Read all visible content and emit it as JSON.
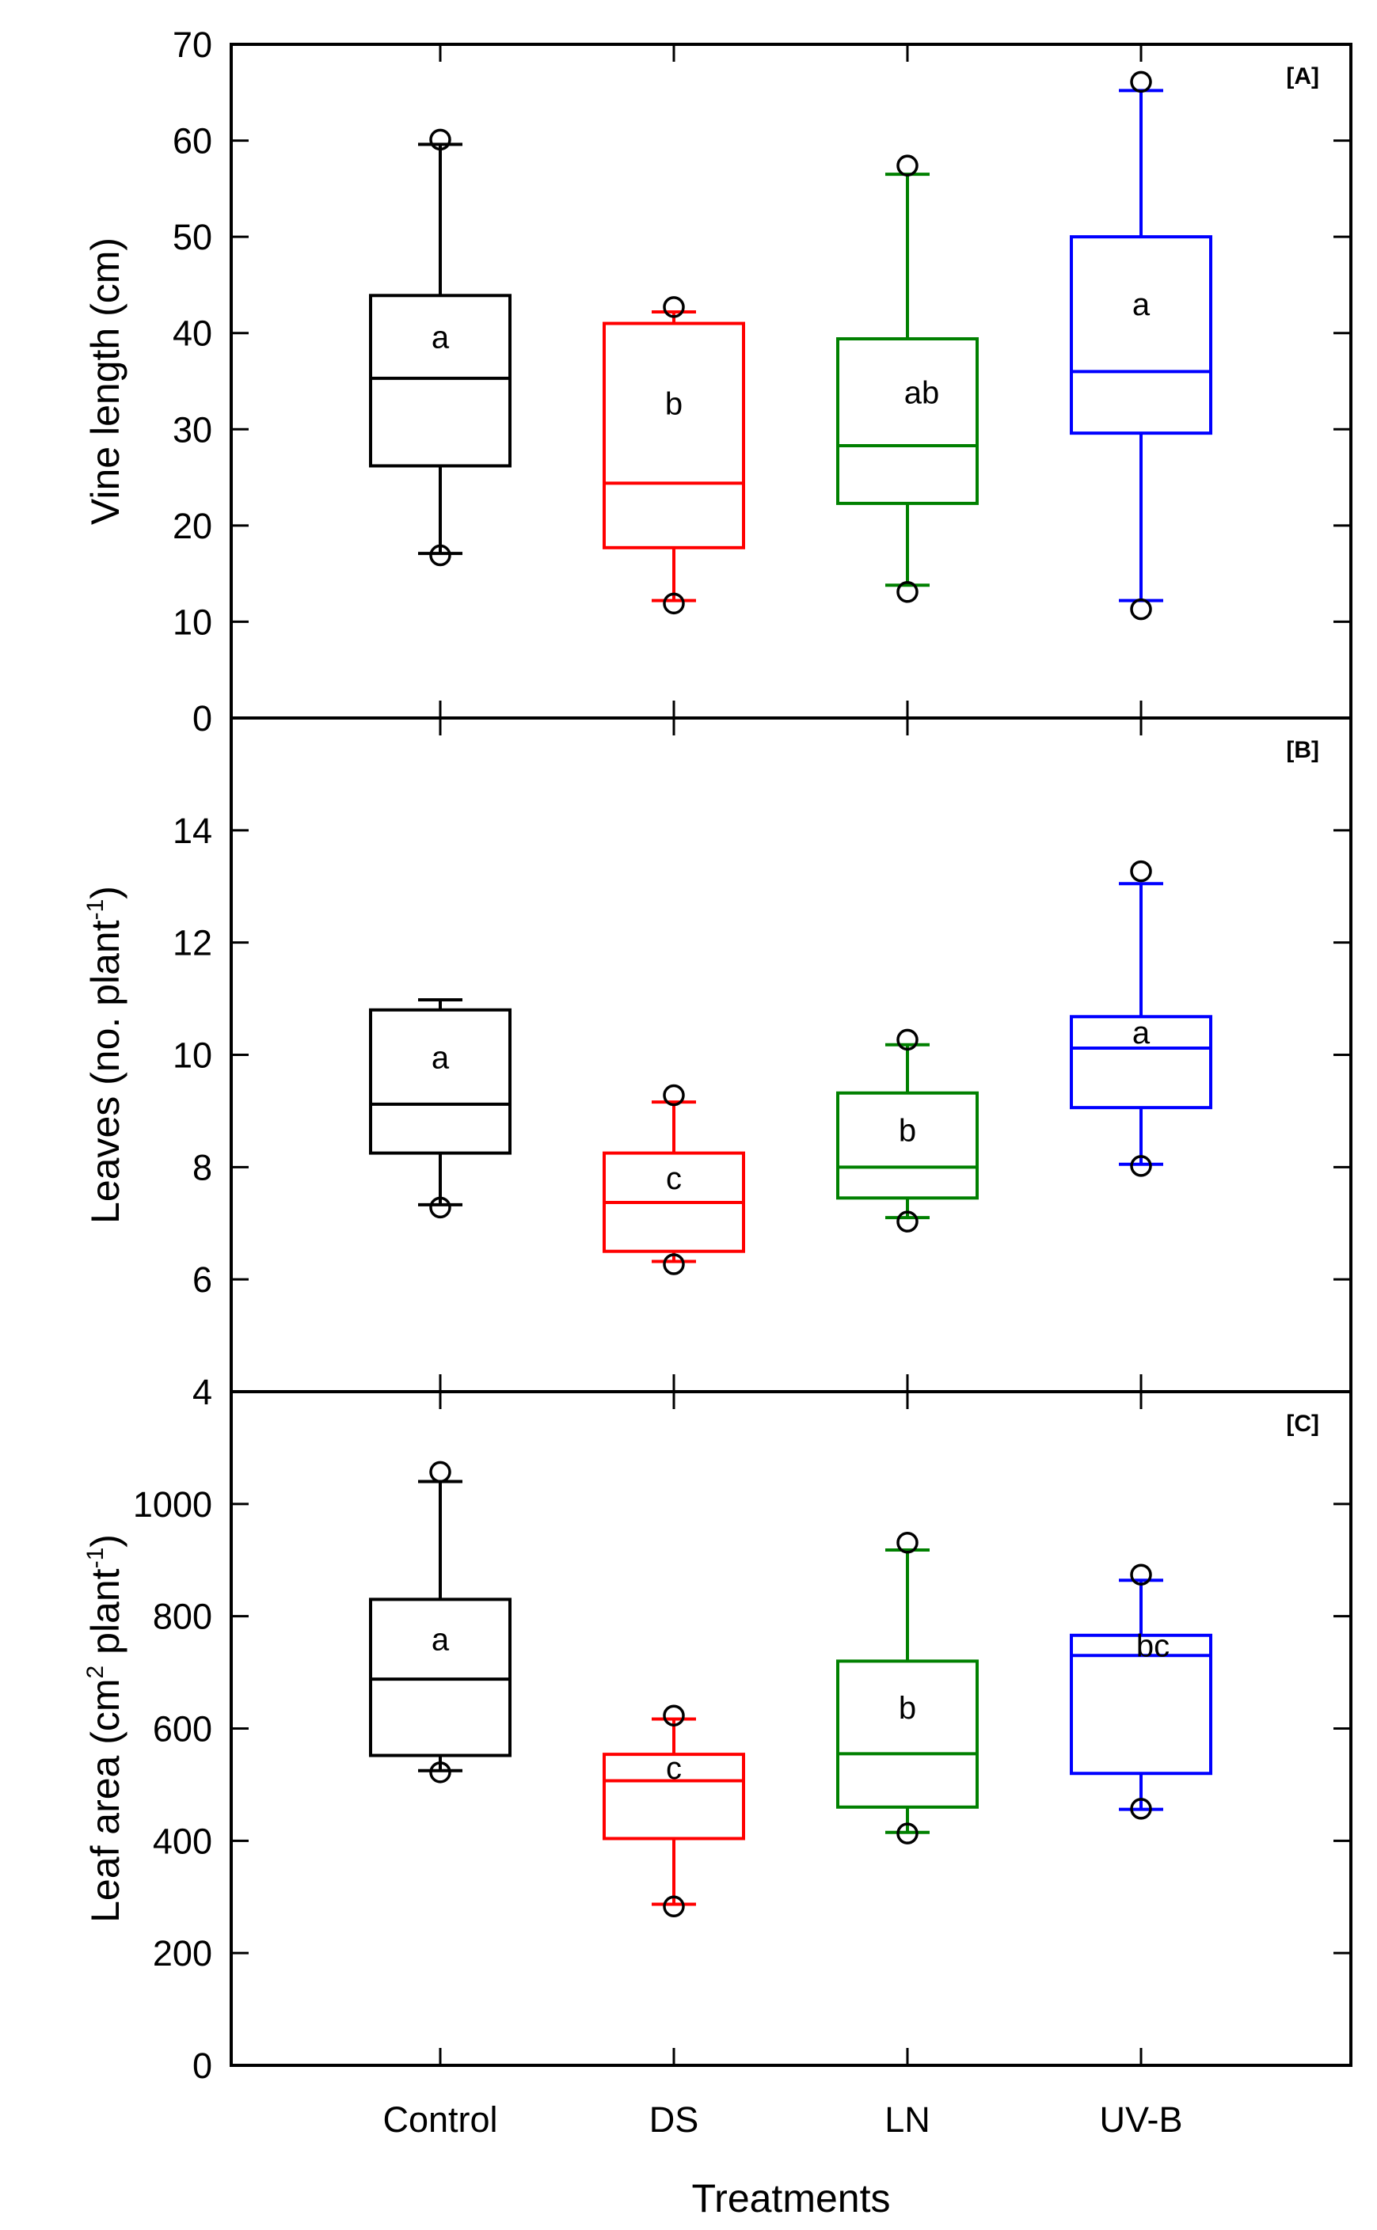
{
  "chart_data": [
    {
      "type": "box",
      "panel_label": "[A]",
      "ylabel": "Vine length (cm)",
      "ylim": [
        0,
        70
      ],
      "yticks": [
        "0",
        "10",
        "20",
        "30",
        "40",
        "50",
        "60",
        "70"
      ],
      "categories": [
        "Control",
        "DS",
        "LN",
        "UV-B"
      ],
      "series": [
        {
          "category": "Control",
          "color": "#000000",
          "whisker_low": 17.1,
          "q1": 26.2,
          "median": 35.3,
          "q3": 43.9,
          "whisker_high": 59.6,
          "outliers": [
            16.9,
            60.1
          ],
          "group": "a"
        },
        {
          "category": "DS",
          "color": "#ff0000",
          "whisker_low": 12.2,
          "q1": 17.7,
          "median": 24.4,
          "q3": 41.0,
          "whisker_high": 42.2,
          "outliers": [
            11.9,
            42.7
          ],
          "group": "b"
        },
        {
          "category": "LN",
          "color": "#008000",
          "whisker_low": 13.8,
          "q1": 22.3,
          "median": 28.3,
          "q3": 39.4,
          "whisker_high": 56.5,
          "outliers": [
            13.1,
            57.4
          ],
          "group": "ab"
        },
        {
          "category": "UV-B",
          "color": "#0000ff",
          "whisker_low": 12.2,
          "q1": 29.6,
          "median": 36.0,
          "q3": 50.0,
          "whisker_high": 65.2,
          "outliers": [
            11.3,
            66.1
          ],
          "group": "a"
        }
      ]
    },
    {
      "type": "box",
      "panel_label": "[B]",
      "ylabel": "Leaves (no. plant",
      "ylabel_sup": "-1",
      "ylabel_end": ")",
      "ylim": [
        4,
        16
      ],
      "yticks": [
        "4",
        "6",
        "8",
        "10",
        "12",
        "14"
      ],
      "categories": [
        "Control",
        "DS",
        "LN",
        "UV-B"
      ],
      "series": [
        {
          "category": "Control",
          "color": "#000000",
          "whisker_low": 7.33,
          "q1": 8.25,
          "median": 9.12,
          "q3": 10.8,
          "whisker_high": 10.98,
          "outliers": [
            7.28
          ],
          "group": "a"
        },
        {
          "category": "DS",
          "color": "#ff0000",
          "whisker_low": 6.32,
          "q1": 6.5,
          "median": 7.37,
          "q3": 8.25,
          "whisker_high": 9.16,
          "outliers": [
            6.27,
            9.28
          ],
          "group": "c"
        },
        {
          "category": "LN",
          "color": "#008000",
          "whisker_low": 7.1,
          "q1": 7.45,
          "median": 8.0,
          "q3": 9.32,
          "whisker_high": 10.18,
          "outliers": [
            7.03,
            10.27
          ],
          "group": "b"
        },
        {
          "category": "UV-B",
          "color": "#0000ff",
          "whisker_low": 8.05,
          "q1": 9.06,
          "median": 10.12,
          "q3": 10.68,
          "whisker_high": 13.05,
          "outliers": [
            8.02,
            13.27
          ],
          "group": "a"
        }
      ]
    },
    {
      "type": "box",
      "panel_label": "[C]",
      "ylabel": "Leaf area (cm",
      "ylabel_sup": "2",
      "ylabel_mid": " plant",
      "ylabel_sup2": "-1",
      "ylabel_end": ")",
      "ylim": [
        0,
        1200
      ],
      "yticks": [
        "0",
        "200",
        "400",
        "600",
        "800",
        "1000"
      ],
      "xlabel": "Treatments",
      "categories": [
        "Control",
        "DS",
        "LN",
        "UV-B"
      ],
      "series": [
        {
          "category": "Control",
          "color": "#000000",
          "whisker_low": 525,
          "q1": 552,
          "median": 688,
          "q3": 830,
          "whisker_high": 1040,
          "outliers": [
            522,
            1057
          ],
          "group": "a"
        },
        {
          "category": "DS",
          "color": "#ff0000",
          "whisker_low": 287,
          "q1": 404,
          "median": 507,
          "q3": 554,
          "whisker_high": 617,
          "outliers": [
            283,
            623
          ],
          "group": "c"
        },
        {
          "category": "LN",
          "color": "#008000",
          "whisker_low": 415,
          "q1": 460,
          "median": 555,
          "q3": 720,
          "whisker_high": 918,
          "outliers": [
            413,
            931
          ],
          "group": "b"
        },
        {
          "category": "UV-B",
          "color": "#0000ff",
          "whisker_low": 456,
          "q1": 520,
          "median": 730,
          "q3": 766,
          "whisker_high": 864,
          "outliers": [
            457,
            874
          ],
          "group": "bc"
        }
      ]
    }
  ]
}
